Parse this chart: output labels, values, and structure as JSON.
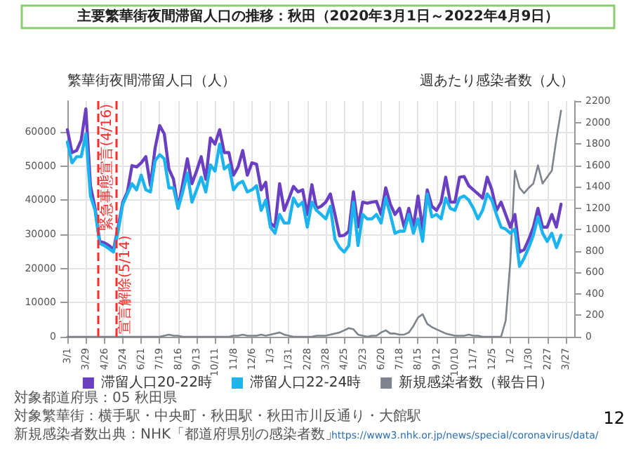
{
  "chart_data": {
    "type": "line",
    "title": "主要繁華街夜間滞留人口の推移：秋田（2020年3月1日～2022年4月9日）",
    "ylabel": "繁華街夜間滞留人口（人）",
    "y2label": "週あたり感染者数（人）",
    "x": [
      "2020-03-01",
      "2020-03-08",
      "2020-03-15",
      "2020-03-22",
      "2020-03-29",
      "2020-04-05",
      "2020-04-12",
      "2020-04-19",
      "2020-04-26",
      "2020-05-03",
      "2020-05-10",
      "2020-05-17",
      "2020-05-24",
      "2020-05-31",
      "2020-06-07",
      "2020-06-14",
      "2020-06-21",
      "2020-06-28",
      "2020-07-05",
      "2020-07-12",
      "2020-07-19",
      "2020-07-26",
      "2020-08-02",
      "2020-08-09",
      "2020-08-16",
      "2020-08-23",
      "2020-08-30",
      "2020-09-06",
      "2020-09-13",
      "2020-09-20",
      "2020-09-27",
      "2020-10-04",
      "2020-10-11",
      "2020-10-18",
      "2020-10-25",
      "2020-11-01",
      "2020-11-08",
      "2020-11-15",
      "2020-11-22",
      "2020-11-29",
      "2020-12-06",
      "2020-12-13",
      "2020-12-20",
      "2020-12-27",
      "2021-01-03",
      "2021-01-10",
      "2021-01-17",
      "2021-01-24",
      "2021-01-31",
      "2021-02-07",
      "2021-02-14",
      "2021-02-21",
      "2021-02-28",
      "2021-03-07",
      "2021-03-14",
      "2021-03-21",
      "2021-03-28",
      "2021-04-04",
      "2021-04-11",
      "2021-04-18",
      "2021-04-25",
      "2021-05-02",
      "2021-05-09",
      "2021-05-16",
      "2021-05-23",
      "2021-05-30",
      "2021-06-06",
      "2021-06-13",
      "2021-06-20",
      "2021-06-27",
      "2021-07-04",
      "2021-07-11",
      "2021-07-18",
      "2021-07-25",
      "2021-08-01",
      "2021-08-08",
      "2021-08-15",
      "2021-08-22",
      "2021-08-29",
      "2021-09-05",
      "2021-09-12",
      "2021-09-19",
      "2021-09-26",
      "2021-10-03",
      "2021-10-10",
      "2021-10-17",
      "2021-10-24",
      "2021-10-31",
      "2021-11-07",
      "2021-11-14",
      "2021-11-21",
      "2021-11-28",
      "2021-12-05",
      "2021-12-12",
      "2021-12-19",
      "2021-12-26",
      "2022-01-02",
      "2022-01-09",
      "2022-01-16",
      "2022-01-23",
      "2022-01-30",
      "2022-02-06",
      "2022-02-13",
      "2022-02-20",
      "2022-02-27",
      "2022-03-06",
      "2022-03-13",
      "2022-03-20"
    ],
    "series": [
      {
        "name": "滞留人口20-22時",
        "color": "#6a3fc1",
        "values": [
          60600,
          53900,
          54500,
          57600,
          66700,
          44200,
          37600,
          27900,
          27500,
          26700,
          25500,
          32100,
          39400,
          42400,
          50100,
          49700,
          50900,
          52700,
          44200,
          55100,
          61800,
          59400,
          49100,
          46100,
          37600,
          44800,
          52100,
          44800,
          48500,
          52700,
          46100,
          58200,
          56400,
          60600,
          53900,
          53900,
          47300,
          49700,
          54500,
          47300,
          50900,
          50500,
          43000,
          45200,
          33300,
          32100,
          44800,
          37000,
          40400,
          44000,
          42400,
          43000,
          35800,
          44500,
          37600,
          38200,
          39400,
          41800,
          35800,
          29500,
          29700,
          30900,
          42400,
          32100,
          39400,
          39100,
          39400,
          39600,
          35800,
          43600,
          38800,
          35800,
          37600,
          32100,
          37600,
          32100,
          41200,
          31500,
          43000,
          38200,
          37000,
          39400,
          46700,
          39400,
          39400,
          46700,
          46900,
          44200,
          43000,
          41800,
          40600,
          46700,
          43000,
          37000,
          39400,
          35800,
          32100,
          35800,
          24800,
          25500,
          28500,
          32100,
          37600,
          32100,
          32100,
          35800,
          32100,
          38800
        ]
      },
      {
        "name": "滞留人口22-24時",
        "color": "#1cb4ee",
        "values": [
          57000,
          50900,
          52700,
          52700,
          59400,
          41200,
          37000,
          27300,
          26700,
          25800,
          24800,
          30900,
          38800,
          41800,
          44800,
          43000,
          47300,
          43000,
          42400,
          51500,
          53300,
          52100,
          43600,
          43600,
          37600,
          42400,
          47900,
          39400,
          43000,
          46700,
          42400,
          50300,
          48500,
          56400,
          49100,
          50300,
          43000,
          44800,
          45500,
          42400,
          43000,
          44200,
          37000,
          40000,
          32100,
          30300,
          35800,
          33300,
          33300,
          40600,
          38200,
          39400,
          32100,
          39400,
          37000,
          35800,
          34500,
          38200,
          28500,
          26100,
          24800,
          26700,
          39400,
          26700,
          35800,
          34500,
          34500,
          35800,
          33300,
          40600,
          35800,
          30300,
          30900,
          30900,
          35800,
          30300,
          34500,
          27900,
          41800,
          35100,
          35800,
          34500,
          40600,
          37600,
          37000,
          40600,
          41200,
          40000,
          37600,
          34500,
          37000,
          41800,
          40000,
          35800,
          32100,
          31500,
          30300,
          31500,
          20600,
          23000,
          26100,
          29700,
          35100,
          30300,
          27900,
          30300,
          26100,
          29700
        ]
      },
      {
        "name": "新規感染者数（報告日）",
        "color": "#7d848e",
        "axis": "y2",
        "values": [
          0,
          0,
          0,
          0,
          0,
          0,
          0,
          0,
          0,
          0,
          0,
          0,
          0,
          0,
          0,
          0,
          0,
          0,
          0,
          0,
          0,
          10,
          20,
          10,
          10,
          0,
          0,
          0,
          0,
          0,
          0,
          0,
          0,
          0,
          0,
          0,
          10,
          10,
          20,
          10,
          10,
          10,
          20,
          10,
          20,
          30,
          40,
          20,
          10,
          0,
          0,
          0,
          0,
          0,
          10,
          10,
          10,
          20,
          30,
          40,
          60,
          80,
          70,
          20,
          10,
          0,
          10,
          10,
          40,
          60,
          30,
          30,
          20,
          20,
          40,
          100,
          180,
          210,
          120,
          90,
          70,
          50,
          30,
          20,
          10,
          10,
          10,
          20,
          10,
          10,
          0,
          0,
          0,
          0,
          0,
          150,
          700,
          1550,
          1390,
          1340,
          1390,
          1430,
          1600,
          1430,
          1490,
          1550,
          1850,
          2110
        ]
      }
    ],
    "xlim": [
      "2020-03-01",
      "2022-04-09"
    ],
    "xticks": [
      {
        "value": "2020-03-01",
        "label": "3/1"
      },
      {
        "value": "2020-03-29",
        "label": "3/29"
      },
      {
        "value": "2020-04-26",
        "label": "4/26"
      },
      {
        "value": "2020-05-24",
        "label": "5/24"
      },
      {
        "value": "2020-06-21",
        "label": "6/21"
      },
      {
        "value": "2020-07-19",
        "label": "7/19"
      },
      {
        "value": "2020-08-16",
        "label": "8/16"
      },
      {
        "value": "2020-09-13",
        "label": "9/13"
      },
      {
        "value": "2020-10-11",
        "label": "10/11"
      },
      {
        "value": "2020-11-08",
        "label": "11/8"
      },
      {
        "value": "2020-12-06",
        "label": "12/6"
      },
      {
        "value": "2021-01-03",
        "label": "1/3"
      },
      {
        "value": "2021-01-31",
        "label": "1/31"
      },
      {
        "value": "2021-02-28",
        "label": "2/28"
      },
      {
        "value": "2021-03-28",
        "label": "3/28"
      },
      {
        "value": "2021-04-25",
        "label": "4/25"
      },
      {
        "value": "2021-05-23",
        "label": "5/23"
      },
      {
        "value": "2021-06-20",
        "label": "6/20"
      },
      {
        "value": "2021-07-18",
        "label": "7/18"
      },
      {
        "value": "2021-08-15",
        "label": "8/15"
      },
      {
        "value": "2021-09-12",
        "label": "9/12"
      },
      {
        "value": "2021-10-10",
        "label": "10/10"
      },
      {
        "value": "2021-11-07",
        "label": "11/7"
      },
      {
        "value": "2021-12-05",
        "label": "12/5"
      },
      {
        "value": "2022-01-02",
        "label": "1/2"
      },
      {
        "value": "2022-01-30",
        "label": "1/30"
      },
      {
        "value": "2022-02-27",
        "label": "2/27"
      },
      {
        "value": "2022-03-27",
        "label": "3/27"
      }
    ],
    "ylim": [
      0,
      69000
    ],
    "yticks": [
      0,
      10000,
      20000,
      30000,
      40000,
      50000,
      60000
    ],
    "y2lim": [
      0,
      2200
    ],
    "y2ticks": [
      0,
      200,
      400,
      600,
      800,
      1000,
      1200,
      1400,
      1600,
      1800,
      2000,
      2200
    ],
    "ref_lines": [
      {
        "axis": "x",
        "value": "2020-04-16",
        "label": "緊急事態宣言(4/16)",
        "color": "#ff2a2a",
        "line_style": "dashed"
      },
      {
        "axis": "x",
        "value": "2020-05-14",
        "label": "宣言解除(5/14)",
        "color": "#ff2a2a",
        "line_style": "dashed"
      }
    ],
    "annotations": [
      "対象都道府県：05 秋田県",
      "対象繁華街：横手駅・中央町・秋田駅・秋田市川反通り・大館駅",
      "新規感染者数出典：NHK「都道府県別の感染者数」",
      "https://www3.nhk.or.jp/news/special/coronavirus/data/",
      "12"
    ],
    "grid": true,
    "legend": "bottom",
    "marker": "none",
    "line_style": "solid"
  }
}
